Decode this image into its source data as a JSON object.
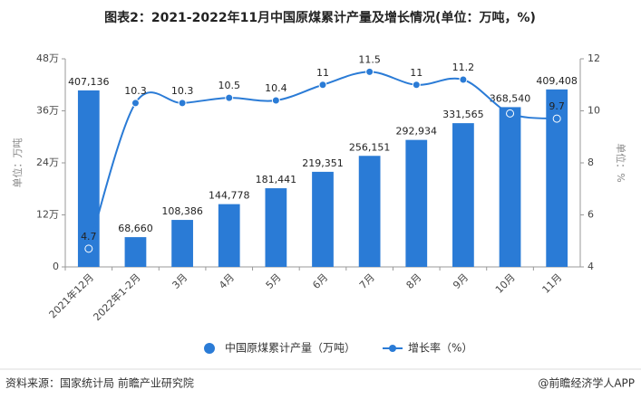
{
  "chart_data": {
    "type": "bar",
    "title": "图表2：2021-2022年11月中国原煤累计产量及增长情况(单位：万吨，%)",
    "y_label": "单位：万吨",
    "y2_label": "单位：%",
    "source": "资料来源：国家统计局 前瞻产业研究院",
    "credit": "@前瞻经济学人APP",
    "categories": [
      "2021年12月",
      "2022年1-2月",
      "3月",
      "4月",
      "5月",
      "6月",
      "7月",
      "8月",
      "9月",
      "10月",
      "11月"
    ],
    "series": [
      {
        "name": "中国原煤累计产量（万吨）",
        "type": "bar",
        "color": "#2a7bd6",
        "values": [
          407136,
          68660,
          108386,
          144778,
          181441,
          219351,
          256151,
          292934,
          331565,
          368540,
          409408
        ],
        "value_labels": [
          "407,136",
          "68,660",
          "108,386",
          "144,778",
          "181,441",
          "219,351",
          "256,151",
          "292,934",
          "331,565",
          "368,540",
          "409,408"
        ]
      },
      {
        "name": "增长率（%）",
        "type": "line",
        "axis": "y2",
        "color": "#2a7bd6",
        "values": [
          4.7,
          10.3,
          10.3,
          10.5,
          10.4,
          11,
          11.5,
          11,
          11.2,
          9.9,
          9.7
        ],
        "value_labels": [
          "4.7",
          "10.3",
          "10.3",
          "10.5",
          "10.4",
          "11",
          "11.5",
          "11",
          "11.2",
          null,
          "9.7"
        ]
      }
    ],
    "ylim": [
      0,
      480000
    ],
    "yticks": [
      0,
      {
        "value": 120000,
        "label": "12万"
      },
      {
        "value": 240000,
        "label": "24万"
      },
      {
        "value": 360000,
        "label": "36万"
      },
      {
        "value": 480000,
        "label": "48万"
      }
    ],
    "y2lim": [
      4,
      12
    ],
    "y2ticks": [
      4,
      6,
      8,
      10,
      12
    ]
  }
}
